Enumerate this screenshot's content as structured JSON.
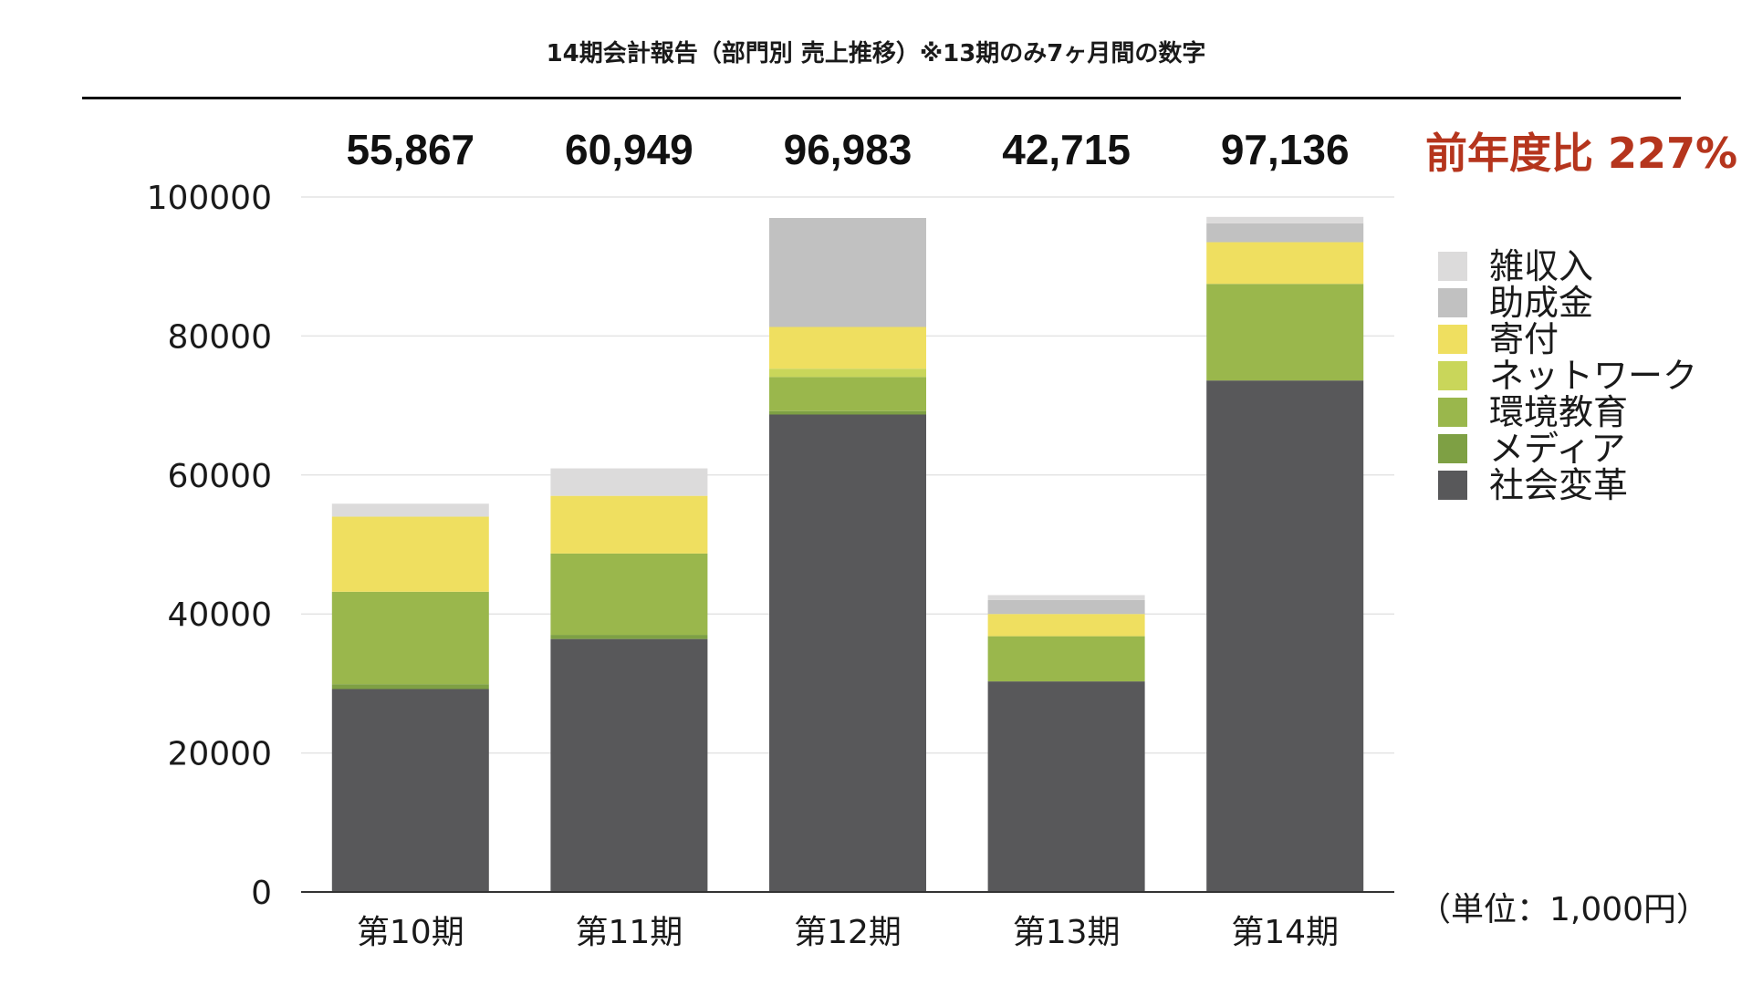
{
  "title": "14期会計報告（部門別 売上推移）※13期のみ7ヶ月間の数字",
  "yoy_label": "前年度比 227%",
  "yoy_color": "#b5351d",
  "unit_label": "（単位：1,000円）",
  "chart_data": {
    "type": "bar",
    "stacked": true,
    "categories": [
      "第10期",
      "第11期",
      "第12期",
      "第13期",
      "第14期"
    ],
    "totals": [
      "55,867",
      "60,949",
      "96,983",
      "42,715",
      "97,136"
    ],
    "ylim": [
      0,
      100000
    ],
    "yticks": [
      "0",
      "20000",
      "40000",
      "60000",
      "80000",
      "100000"
    ],
    "grid": true,
    "legend_position": "right",
    "series": [
      {
        "name": "社会変革",
        "color": "#58585a",
        "values": [
          29200,
          36400,
          68700,
          30300,
          73600
        ]
      },
      {
        "name": "メディア",
        "color": "#7ea044",
        "values": [
          700,
          600,
          500,
          0,
          0
        ]
      },
      {
        "name": "環境教育",
        "color": "#9ab74c",
        "values": [
          13300,
          11700,
          4900,
          6500,
          13900
        ]
      },
      {
        "name": "ネットワーク",
        "color": "#c9d65a",
        "values": [
          0,
          0,
          1200,
          0,
          0
        ]
      },
      {
        "name": "寄付",
        "color": "#efdf60",
        "values": [
          10800,
          8300,
          6000,
          3200,
          6000
        ]
      },
      {
        "name": "助成金",
        "color": "#c1c1c1",
        "values": [
          0,
          0,
          15683,
          2000,
          2700
        ]
      },
      {
        "name": "雑収入",
        "color": "#dcdbdb",
        "values": [
          1867,
          3949,
          0,
          715,
          936
        ]
      }
    ]
  }
}
